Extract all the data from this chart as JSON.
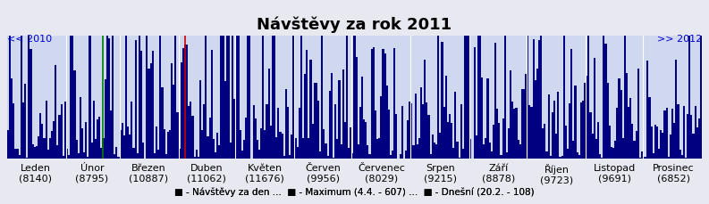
{
  "title": "Návštěvy za rok 2011",
  "background_color": "#e8e8f0",
  "plot_bg_color": "#d0d8f0",
  "months": [
    "Leden",
    "Únor",
    "Březen",
    "Duben",
    "Květen",
    "Červen",
    "Červenec",
    "Srpen",
    "Září",
    "Říjen",
    "Listopad",
    "Prosinec"
  ],
  "month_totals": [
    8140,
    8795,
    10887,
    11062,
    11676,
    9956,
    8029,
    9215,
    8878,
    9723,
    9691,
    6852
  ],
  "days_in_months": [
    31,
    28,
    31,
    30,
    31,
    30,
    31,
    31,
    30,
    31,
    30,
    31
  ],
  "bar_color": "#000080",
  "max_line_color": "#cc0000",
  "today_line_color": "#008000",
  "max_day": 94,
  "max_value": 607,
  "today_day": 51,
  "today_value": 108,
  "link_left": "<< 2010",
  "link_right": ">> 2012",
  "link_color": "#0000cc",
  "legend_text": "■ - Návštěvy za den ...  ■ - Maximum (4.4. - 607) ...  ■ - Dnešní (20.2. - 108)",
  "legend_colors": [
    "#000080",
    "#cc0000",
    "#008000"
  ],
  "ylim": [
    0,
    650
  ],
  "title_fontsize": 13,
  "axis_fontsize": 8
}
